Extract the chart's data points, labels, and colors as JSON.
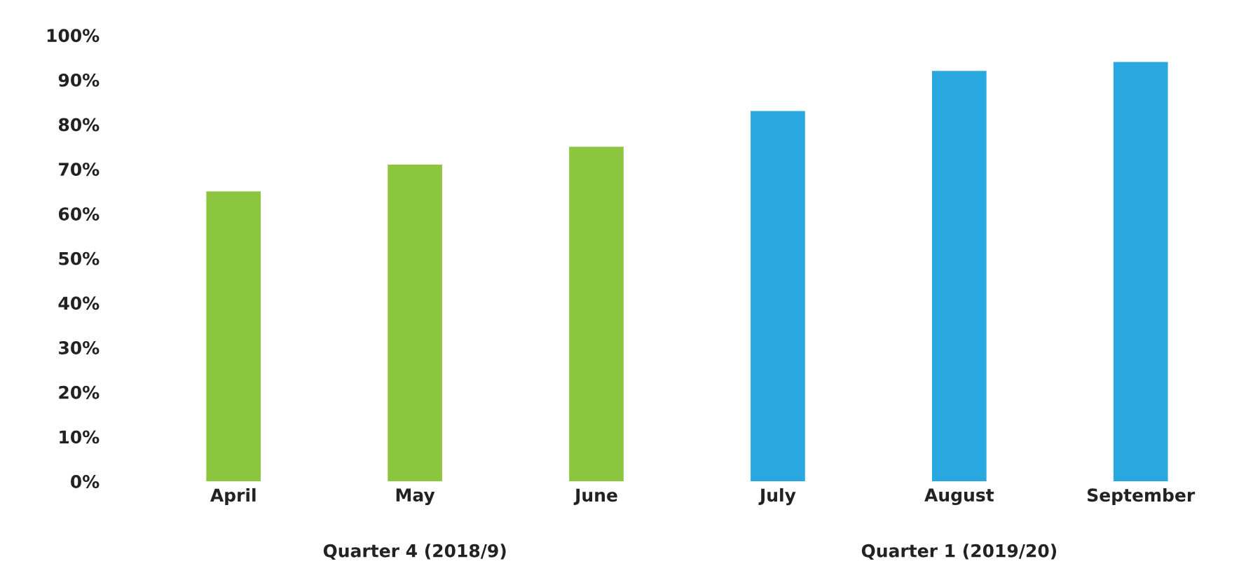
{
  "chart_data": {
    "type": "bar",
    "categories": [
      "April",
      "May",
      "June",
      "July",
      "August",
      "September"
    ],
    "values": [
      65,
      71,
      75,
      83,
      92,
      94
    ],
    "colors": [
      "#8cc63f",
      "#8cc63f",
      "#8cc63f",
      "#29a8e0",
      "#29a8e0",
      "#29a8e0"
    ],
    "ylim": [
      0,
      100
    ],
    "yticks": [
      {
        "value": 0,
        "label": "0%"
      },
      {
        "value": 10,
        "label": "10%"
      },
      {
        "value": 20,
        "label": "20%"
      },
      {
        "value": 30,
        "label": "30%"
      },
      {
        "value": 40,
        "label": "40%"
      },
      {
        "value": 50,
        "label": "50%"
      },
      {
        "value": 60,
        "label": "60%"
      },
      {
        "value": 70,
        "label": "70%"
      },
      {
        "value": 80,
        "label": "80%"
      },
      {
        "value": 90,
        "label": "90%"
      },
      {
        "value": 100,
        "label": "100%"
      }
    ],
    "grid": false,
    "annotations": [
      "Quarter 4 (2018/9)",
      "Quarter 1 (2019/20)"
    ]
  }
}
